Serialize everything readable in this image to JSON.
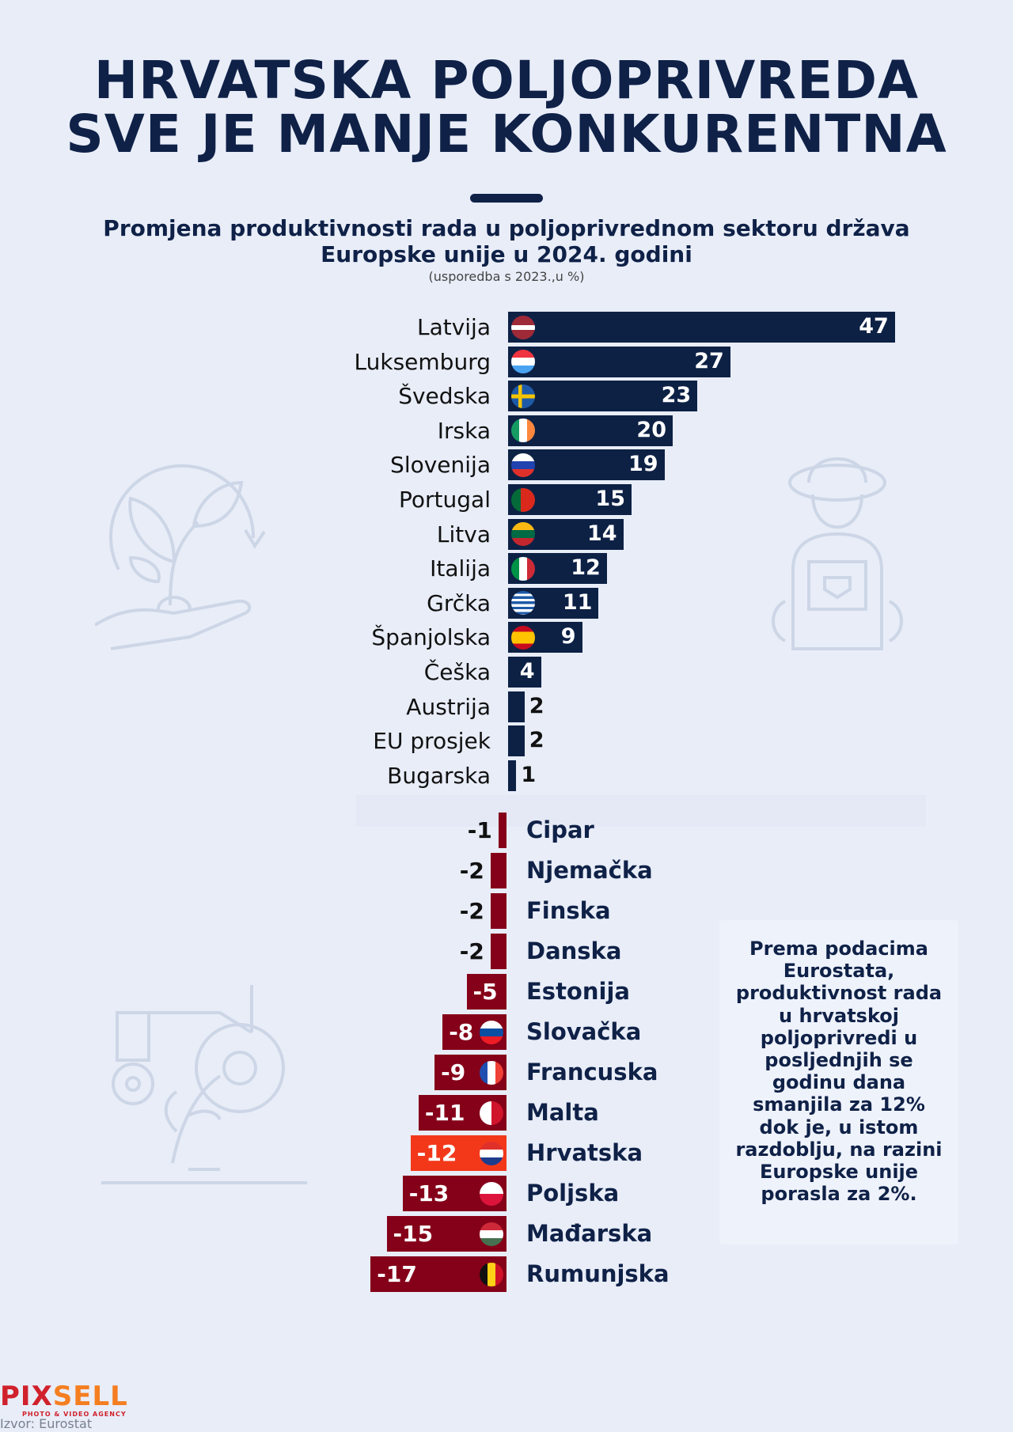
{
  "title": {
    "line1": "HRVATSKA POLJOPRIVREDA",
    "line2": "SVE JE MANJE KONKURENTNA"
  },
  "subtitle": {
    "line1": "Promjena produktivnosti rada u poljoprivrednom sektoru država",
    "line2": "Europske unije u 2024. godini",
    "note": "(usporedba s 2023.,u %)"
  },
  "chart_data": {
    "type": "bar",
    "orientation": "horizontal",
    "categories": [
      "Latvija",
      "Luksemburg",
      "Švedska",
      "Irska",
      "Slovenija",
      "Portugal",
      "Litva",
      "Italija",
      "Grčka",
      "Španjolska",
      "Češka",
      "Austrija",
      "EU prosjek",
      "Bugarska",
      "Cipar",
      "Njemačka",
      "Finska",
      "Danska",
      "Estonija",
      "Slovačka",
      "Francuska",
      "Malta",
      "Hrvatska",
      "Poljska",
      "Mađarska",
      "Rumunjska"
    ],
    "values": [
      47,
      27,
      23,
      20,
      19,
      15,
      14,
      12,
      11,
      9,
      4,
      2,
      2,
      1,
      -1,
      -2,
      -2,
      -2,
      -5,
      -8,
      -9,
      -11,
      -12,
      -13,
      -15,
      -17
    ],
    "flags": [
      "latvia-flag-icon",
      "luxembourg-flag-icon",
      "sweden-flag-icon",
      "ireland-flag-icon",
      "slovenia-flag-icon",
      "portugal-flag-icon",
      "lithuania-flag-icon",
      "italy-flag-icon",
      "greece-flag-icon",
      "spain-flag-icon",
      "",
      "",
      "",
      "",
      "",
      "",
      "",
      "",
      "",
      "slovakia-flag-icon",
      "france-flag-icon",
      "malta-flag-icon",
      "croatia-flag-icon",
      "poland-flag-icon",
      "hungary-flag-icon",
      "romania-flag-icon"
    ],
    "highlight": "Hrvatska",
    "colors": {
      "positive": "#0d2145",
      "negative": "#850019",
      "highlight": "#f3381a"
    },
    "unit": "%"
  },
  "textbox": "Prema podacima Eurostata, produktivnost rada u hrvatskoj poljoprivredi u posljednjih se godinu dana smanjila za 12% dok je, u  istom razdoblju, na razini Europske unije porasla za 2%.",
  "logo": {
    "part1": "PIX",
    "part2": "SELL",
    "tagline": "PHOTO & VIDEO AGENCY"
  },
  "source": "Izvor: Eurostat"
}
